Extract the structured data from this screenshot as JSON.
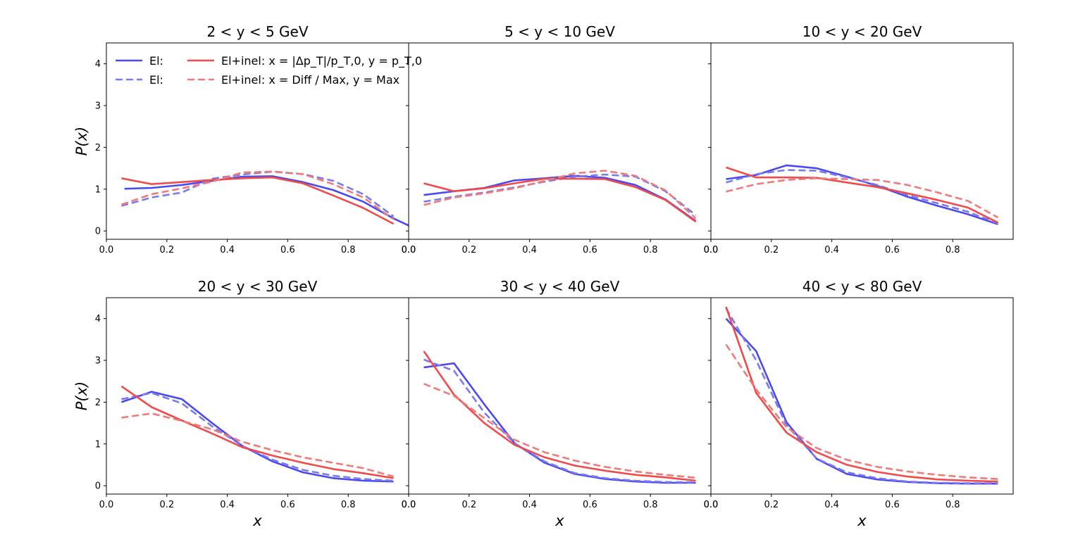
{
  "chart_data": {
    "type": "line",
    "ylabel": "P(x)",
    "xlabel": "x",
    "xlim": [
      0,
      1
    ],
    "ylim": [
      -0.2,
      4.5
    ],
    "xticks": [
      "0.0",
      "0.2",
      "0.4",
      "0.6",
      "0.8",
      "0.0"
    ],
    "xticks_last": [
      "0.0",
      "0.2",
      "0.4",
      "0.6",
      "0.8"
    ],
    "yticks": [
      "0",
      "1",
      "2",
      "3",
      "4"
    ],
    "grid": false,
    "legend_placement": "upper-left of first panel",
    "legend": [
      {
        "label": "El:",
        "color": "#4a4af0",
        "style": "solid"
      },
      {
        "label": "El:",
        "color": "#7a7af0",
        "style": "dashed"
      },
      {
        "label": "El+inel: x = |Δp_T|/p_T,0, y = p_T,0",
        "color": "#f04a4a",
        "style": "solid"
      },
      {
        "label": "El+inel: x = Diff / Max, y = Max",
        "color": "#f07a7a",
        "style": "dashed"
      }
    ],
    "panels": [
      {
        "title": "2 < y < 5 GeV",
        "series": [
          {
            "color": "#4a4af0",
            "style": "solid",
            "x": [
              0.06,
              0.15,
              0.25,
              0.35,
              0.45,
              0.55,
              0.65,
              0.75,
              0.85,
              0.95,
              1.0
            ],
            "y": [
              1.01,
              1.03,
              1.1,
              1.2,
              1.3,
              1.31,
              1.17,
              0.98,
              0.7,
              0.3,
              0.13
            ]
          },
          {
            "color": "#7a7af0",
            "style": "dashed",
            "x": [
              0.05,
              0.15,
              0.25,
              0.35,
              0.45,
              0.55,
              0.65,
              0.75,
              0.85,
              0.95
            ],
            "y": [
              0.6,
              0.8,
              0.92,
              1.25,
              1.35,
              1.42,
              1.36,
              1.2,
              0.88,
              0.35
            ]
          },
          {
            "color": "#f04a4a",
            "style": "solid",
            "x": [
              0.05,
              0.15,
              0.25,
              0.35,
              0.45,
              0.55,
              0.65,
              0.75,
              0.85,
              0.95
            ],
            "y": [
              1.26,
              1.12,
              1.17,
              1.22,
              1.26,
              1.28,
              1.14,
              0.85,
              0.55,
              0.17
            ]
          },
          {
            "color": "#f07a7a",
            "style": "dashed",
            "x": [
              0.05,
              0.15,
              0.25,
              0.35,
              0.45,
              0.55,
              0.65,
              0.75,
              0.85,
              0.95
            ],
            "y": [
              0.63,
              0.88,
              1.02,
              1.18,
              1.4,
              1.42,
              1.36,
              1.12,
              0.8,
              0.28
            ]
          }
        ]
      },
      {
        "title": "5 < y < 10 GeV",
        "series": [
          {
            "color": "#4a4af0",
            "style": "solid",
            "x": [
              0.05,
              0.15,
              0.25,
              0.35,
              0.45,
              0.55,
              0.65,
              0.75,
              0.85,
              0.95
            ],
            "y": [
              0.86,
              0.95,
              1.03,
              1.21,
              1.26,
              1.32,
              1.27,
              1.1,
              0.75,
              0.24
            ]
          },
          {
            "color": "#7a7af0",
            "style": "dashed",
            "x": [
              0.05,
              0.15,
              0.25,
              0.35,
              0.45,
              0.55,
              0.65,
              0.75,
              0.85,
              0.95
            ],
            "y": [
              0.7,
              0.82,
              0.92,
              1.04,
              1.18,
              1.3,
              1.35,
              1.3,
              0.95,
              0.38
            ]
          },
          {
            "color": "#f04a4a",
            "style": "solid",
            "x": [
              0.05,
              0.15,
              0.25,
              0.35,
              0.45,
              0.55,
              0.65,
              0.75,
              0.85,
              0.95
            ],
            "y": [
              1.14,
              0.95,
              1.02,
              1.14,
              1.25,
              1.25,
              1.24,
              1.05,
              0.74,
              0.22
            ]
          },
          {
            "color": "#f07a7a",
            "style": "dashed",
            "x": [
              0.05,
              0.15,
              0.25,
              0.35,
              0.45,
              0.55,
              0.65,
              0.75,
              0.85,
              0.95
            ],
            "y": [
              0.62,
              0.8,
              0.9,
              1.02,
              1.2,
              1.38,
              1.44,
              1.32,
              0.97,
              0.3
            ]
          }
        ]
      },
      {
        "title": "10 < y < 20 GeV",
        "series": [
          {
            "color": "#4a4af0",
            "style": "solid",
            "x": [
              0.05,
              0.15,
              0.25,
              0.35,
              0.45,
              0.55,
              0.65,
              0.75,
              0.85,
              0.95
            ],
            "y": [
              1.24,
              1.34,
              1.57,
              1.5,
              1.3,
              1.08,
              0.82,
              0.6,
              0.4,
              0.16
            ]
          },
          {
            "color": "#7a7af0",
            "style": "dashed",
            "x": [
              0.05,
              0.15,
              0.25,
              0.35,
              0.45,
              0.55,
              0.65,
              0.75,
              0.85,
              0.95
            ],
            "y": [
              1.16,
              1.36,
              1.46,
              1.44,
              1.28,
              1.1,
              0.86,
              0.66,
              0.46,
              0.18
            ]
          },
          {
            "color": "#f04a4a",
            "style": "solid",
            "x": [
              0.05,
              0.15,
              0.25,
              0.35,
              0.45,
              0.55,
              0.65,
              0.75,
              0.85,
              0.95
            ],
            "y": [
              1.52,
              1.28,
              1.28,
              1.27,
              1.16,
              1.05,
              0.9,
              0.74,
              0.56,
              0.2
            ]
          },
          {
            "color": "#f07a7a",
            "style": "dashed",
            "x": [
              0.05,
              0.15,
              0.25,
              0.35,
              0.45,
              0.55,
              0.65,
              0.75,
              0.85,
              0.95
            ],
            "y": [
              0.94,
              1.12,
              1.22,
              1.26,
              1.24,
              1.22,
              1.1,
              0.92,
              0.72,
              0.32
            ]
          }
        ]
      },
      {
        "title": "20 < y < 30 GeV",
        "series": [
          {
            "color": "#4a4af0",
            "style": "solid",
            "x": [
              0.05,
              0.15,
              0.25,
              0.35,
              0.45,
              0.55,
              0.65,
              0.75,
              0.85,
              0.95
            ],
            "y": [
              2.0,
              2.25,
              2.07,
              1.5,
              0.95,
              0.58,
              0.32,
              0.18,
              0.12,
              0.1
            ]
          },
          {
            "color": "#7a7af0",
            "style": "dashed",
            "x": [
              0.05,
              0.15,
              0.25,
              0.35,
              0.45,
              0.55,
              0.65,
              0.75,
              0.85,
              0.95
            ],
            "y": [
              2.07,
              2.22,
              1.97,
              1.42,
              0.95,
              0.62,
              0.38,
              0.24,
              0.16,
              0.12
            ]
          },
          {
            "color": "#f04a4a",
            "style": "solid",
            "x": [
              0.05,
              0.15,
              0.25,
              0.35,
              0.45,
              0.55,
              0.65,
              0.75,
              0.85,
              0.95
            ],
            "y": [
              2.38,
              1.88,
              1.56,
              1.25,
              0.92,
              0.72,
              0.55,
              0.4,
              0.3,
              0.18
            ]
          },
          {
            "color": "#f07a7a",
            "style": "dashed",
            "x": [
              0.05,
              0.15,
              0.25,
              0.35,
              0.45,
              0.55,
              0.65,
              0.75,
              0.85,
              0.95
            ],
            "y": [
              1.63,
              1.73,
              1.55,
              1.35,
              1.05,
              0.85,
              0.68,
              0.55,
              0.42,
              0.22
            ]
          }
        ]
      },
      {
        "title": "30 < y < 40 GeV",
        "series": [
          {
            "color": "#4a4af0",
            "style": "solid",
            "x": [
              0.05,
              0.15,
              0.25,
              0.35,
              0.45,
              0.55,
              0.65,
              0.75,
              0.85,
              0.95
            ],
            "y": [
              2.83,
              2.93,
              1.95,
              1.02,
              0.55,
              0.28,
              0.16,
              0.1,
              0.07,
              0.07
            ]
          },
          {
            "color": "#7a7af0",
            "style": "dashed",
            "x": [
              0.05,
              0.15,
              0.25,
              0.35,
              0.45,
              0.55,
              0.65,
              0.75,
              0.85,
              0.95
            ],
            "y": [
              3.02,
              2.75,
              1.75,
              1.02,
              0.58,
              0.3,
              0.18,
              0.12,
              0.09,
              0.08
            ]
          },
          {
            "color": "#f04a4a",
            "style": "solid",
            "x": [
              0.05,
              0.15,
              0.25,
              0.35,
              0.45,
              0.55,
              0.65,
              0.75,
              0.85,
              0.95
            ],
            "y": [
              3.22,
              2.18,
              1.5,
              0.98,
              0.68,
              0.48,
              0.36,
              0.26,
              0.2,
              0.12
            ]
          },
          {
            "color": "#f07a7a",
            "style": "dashed",
            "x": [
              0.05,
              0.15,
              0.25,
              0.35,
              0.45,
              0.55,
              0.65,
              0.75,
              0.85,
              0.95
            ],
            "y": [
              2.44,
              2.15,
              1.62,
              1.1,
              0.8,
              0.6,
              0.45,
              0.34,
              0.26,
              0.19
            ]
          }
        ]
      },
      {
        "title": "40 < y < 80 GeV",
        "series": [
          {
            "color": "#4a4af0",
            "style": "solid",
            "x": [
              0.05,
              0.15,
              0.25,
              0.35,
              0.45,
              0.55,
              0.65,
              0.75,
              0.85,
              0.95
            ],
            "y": [
              4.0,
              3.22,
              1.52,
              0.64,
              0.28,
              0.15,
              0.09,
              0.06,
              0.05,
              0.05
            ]
          },
          {
            "color": "#7a7af0",
            "style": "dashed",
            "x": [
              0.05,
              0.15,
              0.25,
              0.35,
              0.45,
              0.55,
              0.65,
              0.75,
              0.85,
              0.95
            ],
            "y": [
              4.25,
              3.0,
              1.45,
              0.65,
              0.32,
              0.18,
              0.1,
              0.07,
              0.06,
              0.06
            ]
          },
          {
            "color": "#f04a4a",
            "style": "solid",
            "x": [
              0.05,
              0.15,
              0.25,
              0.35,
              0.45,
              0.55,
              0.65,
              0.75,
              0.85,
              0.95
            ],
            "y": [
              4.28,
              2.22,
              1.27,
              0.8,
              0.5,
              0.33,
              0.22,
              0.15,
              0.12,
              0.1
            ]
          },
          {
            "color": "#f07a7a",
            "style": "dashed",
            "x": [
              0.05,
              0.15,
              0.25,
              0.35,
              0.45,
              0.55,
              0.65,
              0.75,
              0.85,
              0.95
            ],
            "y": [
              3.38,
              2.3,
              1.4,
              0.9,
              0.62,
              0.45,
              0.34,
              0.26,
              0.2,
              0.16
            ]
          }
        ]
      }
    ]
  }
}
